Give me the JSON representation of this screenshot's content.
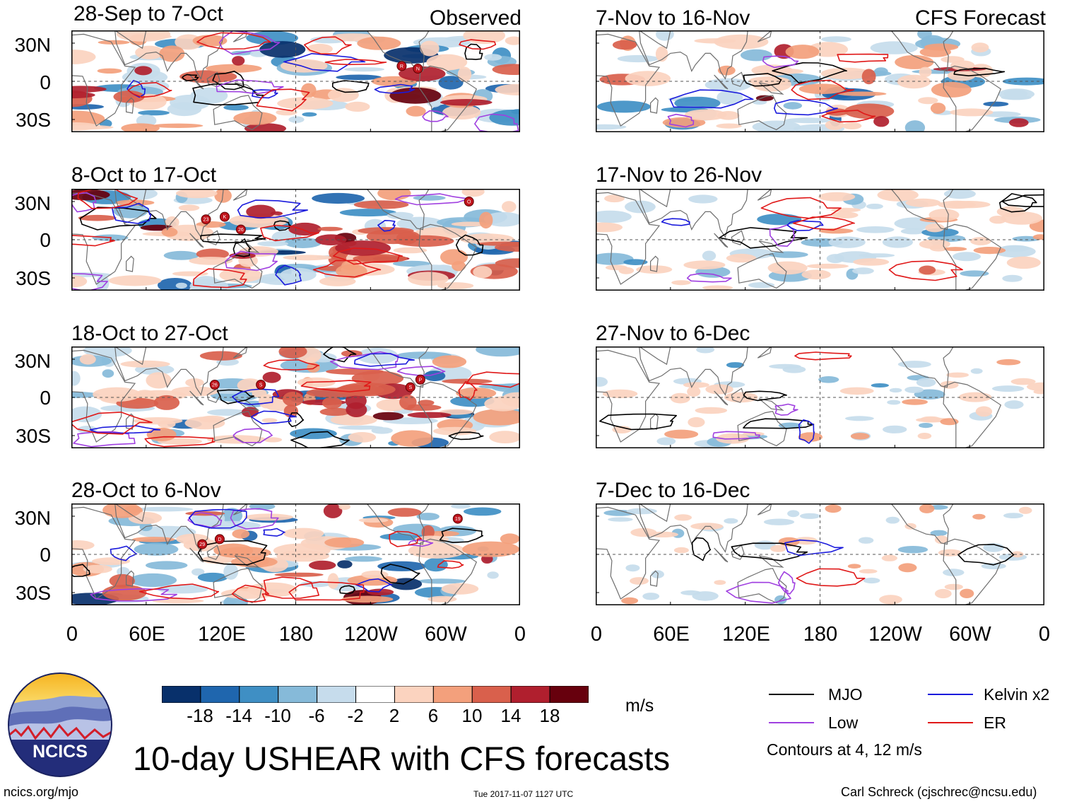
{
  "title": "10-day USHEAR with CFS forecasts",
  "observed_label": "Observed",
  "forecast_label": "CFS Forecast",
  "logo_text": "NCICS",
  "units": "m/s",
  "footer": {
    "url": "ncics.org/mjo",
    "timestamp": "Tue 2017-11-07 1127 UTC",
    "author": "Carl Schreck (cjschrec@ncsu.edu)"
  },
  "legend": {
    "mjo": "MJO",
    "kelvin": "Kelvin x2",
    "low": "Low",
    "er": "ER",
    "contours_note": "Contours at 4, 12 m/s",
    "colors": {
      "mjo": "#000000",
      "kelvin": "#1a1adc",
      "low": "#a040e0",
      "er": "#e01818"
    }
  },
  "lat_labels": [
    "30N",
    "0",
    "30S"
  ],
  "lon_labels": [
    "0",
    "60E",
    "120E",
    "180",
    "120W",
    "60W",
    "0"
  ],
  "chart_data": {
    "type": "heatmap",
    "variable": "10-day USHEAR",
    "units": "m/s",
    "colorbar": {
      "ticks": [
        -18,
        -14,
        -10,
        -6,
        -2,
        2,
        6,
        10,
        14,
        18
      ],
      "tick_labels": [
        "-18",
        "-14",
        "-10",
        "-6",
        "-2",
        "2",
        "6",
        "10",
        "14",
        "18"
      ],
      "colors": [
        "#08306b",
        "#1f66ae",
        "#3f8fc4",
        "#86bad9",
        "#c6dcec",
        "#ffffff",
        "#fbd3bf",
        "#f3a07c",
        "#d9604c",
        "#b01f2e",
        "#67000d"
      ]
    },
    "x_axis": {
      "ticks": [
        "0",
        "60E",
        "120E",
        "180",
        "120W",
        "60W",
        "0"
      ],
      "range": [
        0,
        360
      ]
    },
    "y_axis": {
      "ticks": [
        "30N",
        "0",
        "30S"
      ],
      "range": [
        -40,
        40
      ]
    },
    "contour_levels": [
      4,
      12
    ],
    "panels": [
      {
        "id": "obs1",
        "title": "28-Sep to 7-Oct",
        "source": "Observed",
        "storms": [
          "R",
          "N"
        ]
      },
      {
        "id": "obs2",
        "title": "8-Oct to 17-Oct",
        "source": "Observed",
        "storms": [
          "23",
          "K",
          "26",
          "O"
        ]
      },
      {
        "id": "obs3",
        "title": "18-Oct to 27-Oct",
        "source": "Observed",
        "storms": [
          "26",
          "S",
          "P",
          "S"
        ]
      },
      {
        "id": "obs4",
        "title": "28-Oct to 6-Nov",
        "source": "Observed",
        "storms": [
          "29",
          "D",
          "19"
        ]
      },
      {
        "id": "fc1",
        "title": "7-Nov to 16-Nov",
        "source": "CFS Forecast",
        "storms": []
      },
      {
        "id": "fc2",
        "title": "17-Nov to 26-Nov",
        "source": "CFS Forecast",
        "storms": []
      },
      {
        "id": "fc3",
        "title": "27-Nov to 6-Dec",
        "source": "CFS Forecast",
        "storms": []
      },
      {
        "id": "fc4",
        "title": "7-Dec to 16-Dec",
        "source": "CFS Forecast",
        "storms": []
      }
    ]
  }
}
